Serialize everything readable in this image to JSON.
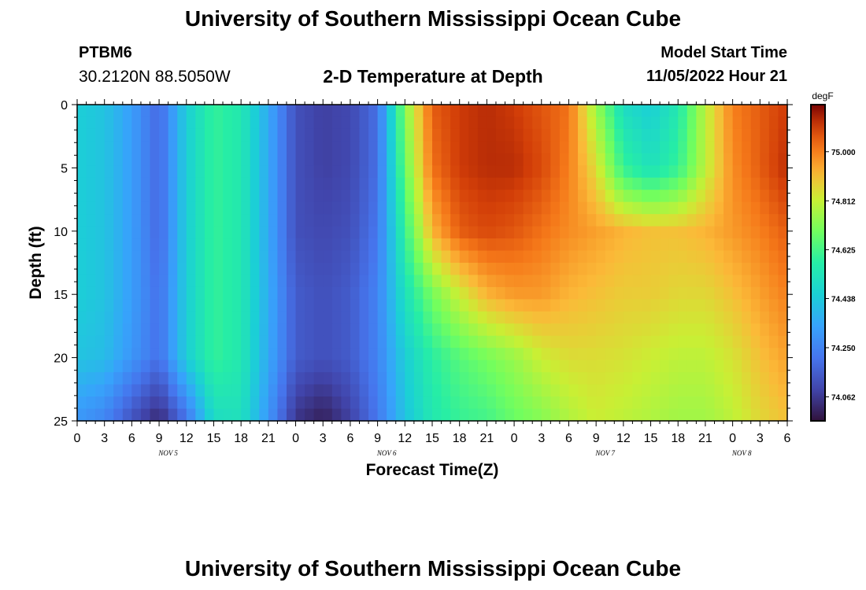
{
  "header": {
    "title": "University of Southern Mississippi Ocean Cube",
    "station_id": "PTBM6",
    "station_coords": "30.2120N  88.5050W",
    "plot_title": "2-D Temperature at Depth",
    "model_start_label": "Model Start Time",
    "model_start_value": "11/05/2022 Hour 21"
  },
  "footer": {
    "title": "University of Southern Mississippi Ocean Cube"
  },
  "chart_data": {
    "type": "heatmap",
    "xlabel": "Forecast Time(Z)",
    "ylabel": "Depth (ft)",
    "y_ticks": [
      0,
      5,
      10,
      15,
      20,
      25
    ],
    "y_range": [
      0,
      25
    ],
    "x_tick_labels": [
      "0",
      "3",
      "6",
      "9",
      "12",
      "15",
      "18",
      "21",
      "0",
      "3",
      "6",
      "9",
      "12",
      "15",
      "18",
      "21",
      "0",
      "3",
      "6",
      "9",
      "12",
      "15",
      "18",
      "21",
      "0",
      "3",
      "6"
    ],
    "x_range_hours": [
      0,
      78
    ],
    "day_labels": [
      {
        "label": "NOV 5",
        "hour": 10
      },
      {
        "label": "NOV 6",
        "hour": 34
      },
      {
        "label": "NOV 7",
        "hour": 58
      },
      {
        "label": "NOV 8",
        "hour": 73
      }
    ],
    "colorbar": {
      "unit": "degF",
      "min": 73.97,
      "max": 75.18,
      "ticks": [
        74.062,
        74.25,
        74.438,
        74.625,
        74.812,
        75.0
      ],
      "tick_labels": [
        "74.062",
        "74.250",
        "74.438",
        "74.625",
        "74.812",
        "75.000"
      ]
    },
    "grid": false,
    "depth_levels": [
      0,
      5,
      10,
      15,
      20,
      25
    ],
    "hours": [
      0,
      3,
      6,
      9,
      12,
      15,
      18,
      21,
      24,
      27,
      30,
      33,
      36,
      39,
      42,
      45,
      48,
      51,
      54,
      57,
      60,
      63,
      66,
      69,
      72,
      75,
      78
    ],
    "temperature": [
      [
        74.45,
        74.42,
        74.32,
        74.18,
        74.45,
        74.6,
        74.55,
        74.35,
        74.12,
        74.08,
        74.1,
        74.2,
        74.72,
        75.05,
        75.1,
        75.12,
        75.1,
        75.06,
        75.02,
        74.75,
        74.5,
        74.45,
        74.55,
        74.8,
        75.0,
        75.05,
        75.1
      ],
      [
        74.45,
        74.42,
        74.32,
        74.18,
        74.45,
        74.6,
        74.55,
        74.35,
        74.12,
        74.08,
        74.1,
        74.2,
        74.68,
        75.02,
        75.1,
        75.12,
        75.12,
        75.08,
        75.0,
        74.85,
        74.6,
        74.52,
        74.6,
        74.8,
        74.98,
        75.05,
        75.12
      ],
      [
        74.45,
        74.42,
        74.32,
        74.18,
        74.45,
        74.6,
        74.55,
        74.35,
        74.12,
        74.1,
        74.12,
        74.22,
        74.6,
        74.92,
        75.05,
        75.08,
        75.06,
        75.02,
        74.98,
        74.95,
        74.92,
        74.9,
        74.9,
        74.92,
        74.96,
        75.0,
        75.05
      ],
      [
        74.45,
        74.42,
        74.32,
        74.2,
        74.45,
        74.6,
        74.55,
        74.36,
        74.15,
        74.12,
        74.15,
        74.25,
        74.52,
        74.7,
        74.82,
        74.92,
        74.96,
        74.96,
        74.92,
        74.9,
        74.88,
        74.88,
        74.86,
        74.86,
        74.9,
        74.95,
        75.0
      ],
      [
        74.42,
        74.4,
        74.3,
        74.2,
        74.45,
        74.6,
        74.55,
        74.35,
        74.15,
        74.12,
        74.15,
        74.25,
        74.45,
        74.58,
        74.65,
        74.7,
        74.75,
        74.82,
        74.85,
        74.85,
        74.84,
        74.82,
        74.8,
        74.8,
        74.84,
        74.9,
        74.95
      ],
      [
        74.3,
        74.25,
        74.12,
        74.02,
        74.2,
        74.5,
        74.52,
        74.3,
        74.05,
        74.0,
        74.08,
        74.22,
        74.42,
        74.55,
        74.6,
        74.62,
        74.68,
        74.72,
        74.78,
        74.82,
        74.8,
        74.78,
        74.76,
        74.76,
        74.8,
        74.86,
        74.9
      ]
    ]
  }
}
